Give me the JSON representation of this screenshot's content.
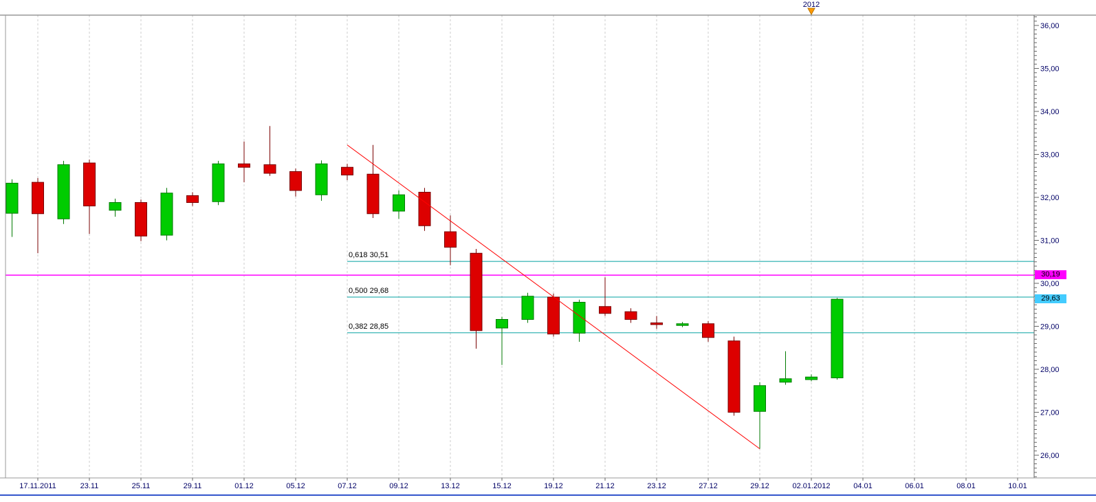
{
  "chart_data": {
    "type": "candlestick",
    "title": "",
    "y_axis": {
      "min": 26.0,
      "max": 36.0,
      "major_step": 1.0,
      "minor_step": 0.1,
      "position": "right",
      "tick_labels": [
        "36,00",
        "35,00",
        "34,00",
        "33,00",
        "32,00",
        "31,00",
        "30,00",
        "29,00",
        "28,00",
        "27,00",
        "26,00"
      ]
    },
    "x_axis": {
      "grid": "vertical-dashed",
      "tick_labels": [
        "17.11.2011",
        "23.11",
        "25.11",
        "29.11",
        "01.12",
        "05.12",
        "07.12",
        "09.12",
        "13.12",
        "15.12",
        "19.12",
        "21.12",
        "23.12",
        "27.12",
        "29.12",
        "02.01.2012",
        "04.01",
        "06.01",
        "08.01",
        "10.01"
      ]
    },
    "candles": [
      {
        "o": 31.63,
        "h": 32.42,
        "l": 31.08,
        "c": 32.33
      },
      {
        "o": 32.35,
        "h": 32.45,
        "l": 30.7,
        "c": 31.62
      },
      {
        "o": 31.5,
        "h": 32.85,
        "l": 31.38,
        "c": 32.76
      },
      {
        "o": 32.8,
        "h": 32.88,
        "l": 31.15,
        "c": 31.8
      },
      {
        "o": 31.7,
        "h": 31.97,
        "l": 31.55,
        "c": 31.88
      },
      {
        "o": 31.88,
        "h": 31.95,
        "l": 30.98,
        "c": 31.1
      },
      {
        "o": 31.12,
        "h": 32.22,
        "l": 31.0,
        "c": 32.1
      },
      {
        "o": 32.04,
        "h": 32.12,
        "l": 31.8,
        "c": 31.88
      },
      {
        "o": 31.9,
        "h": 32.85,
        "l": 31.82,
        "c": 32.78
      },
      {
        "o": 32.78,
        "h": 33.3,
        "l": 32.35,
        "c": 32.7
      },
      {
        "o": 32.76,
        "h": 33.66,
        "l": 32.5,
        "c": 32.56
      },
      {
        "o": 32.6,
        "h": 32.67,
        "l": 32.02,
        "c": 32.16
      },
      {
        "o": 32.06,
        "h": 32.86,
        "l": 31.92,
        "c": 32.78
      },
      {
        "o": 32.7,
        "h": 32.78,
        "l": 32.4,
        "c": 32.52
      },
      {
        "o": 32.54,
        "h": 33.22,
        "l": 31.52,
        "c": 31.62
      },
      {
        "o": 31.68,
        "h": 32.16,
        "l": 31.5,
        "c": 32.06
      },
      {
        "o": 32.12,
        "h": 32.22,
        "l": 31.22,
        "c": 31.34
      },
      {
        "o": 31.2,
        "h": 31.58,
        "l": 30.42,
        "c": 30.84
      },
      {
        "o": 30.7,
        "h": 30.8,
        "l": 28.48,
        "c": 28.9
      },
      {
        "o": 28.96,
        "h": 29.22,
        "l": 28.1,
        "c": 29.16
      },
      {
        "o": 29.16,
        "h": 29.78,
        "l": 29.08,
        "c": 29.7
      },
      {
        "o": 29.68,
        "h": 29.76,
        "l": 28.76,
        "c": 28.82
      },
      {
        "o": 28.84,
        "h": 29.62,
        "l": 28.64,
        "c": 29.56
      },
      {
        "o": 29.46,
        "h": 30.14,
        "l": 29.24,
        "c": 29.3
      },
      {
        "o": 29.34,
        "h": 29.42,
        "l": 29.08,
        "c": 29.16
      },
      {
        "o": 29.08,
        "h": 29.24,
        "l": 28.94,
        "c": 29.04
      },
      {
        "o": 29.02,
        "h": 29.1,
        "l": 28.98,
        "c": 29.06
      },
      {
        "o": 29.06,
        "h": 29.12,
        "l": 28.64,
        "c": 28.74
      },
      {
        "o": 28.66,
        "h": 28.76,
        "l": 26.92,
        "c": 27.0
      },
      {
        "o": 27.02,
        "h": 27.7,
        "l": 26.15,
        "c": 27.62
      },
      {
        "o": 27.7,
        "h": 28.42,
        "l": 27.64,
        "c": 27.78
      },
      {
        "o": 27.76,
        "h": 27.88,
        "l": 27.72,
        "c": 27.82
      },
      {
        "o": 27.8,
        "h": 29.66,
        "l": 27.76,
        "c": 29.63
      }
    ],
    "fib_levels": [
      {
        "label": "0,618 30,51",
        "ratio": 0.618,
        "value": 30.51
      },
      {
        "label": "0,500 29,68",
        "ratio": 0.5,
        "value": 29.68
      },
      {
        "label": "0,382 28,85",
        "ratio": 0.382,
        "value": 28.85
      }
    ],
    "horizontal_line": {
      "value": 30.19,
      "label": "30,19"
    },
    "current_price": {
      "value": 29.63,
      "label": "29,63"
    },
    "trend_line": {
      "from": {
        "candle": 13,
        "price": 33.22
      },
      "to": {
        "candle": 29,
        "price": 26.15
      }
    },
    "year_marker": {
      "label": "2012",
      "candle": 31
    },
    "colors": {
      "up": "#00cc00",
      "up_border": "#007a00",
      "down": "#dd0000",
      "down_border": "#7a0000",
      "fib": "#00a0a0",
      "trend": "#ff0000",
      "grid": "#cccccc",
      "axis_text": "#000066",
      "magenta": "#ff00ff",
      "current_bg": "#44ccff",
      "marker": "#ff9900",
      "bottom_bar": "#3355cc"
    }
  }
}
